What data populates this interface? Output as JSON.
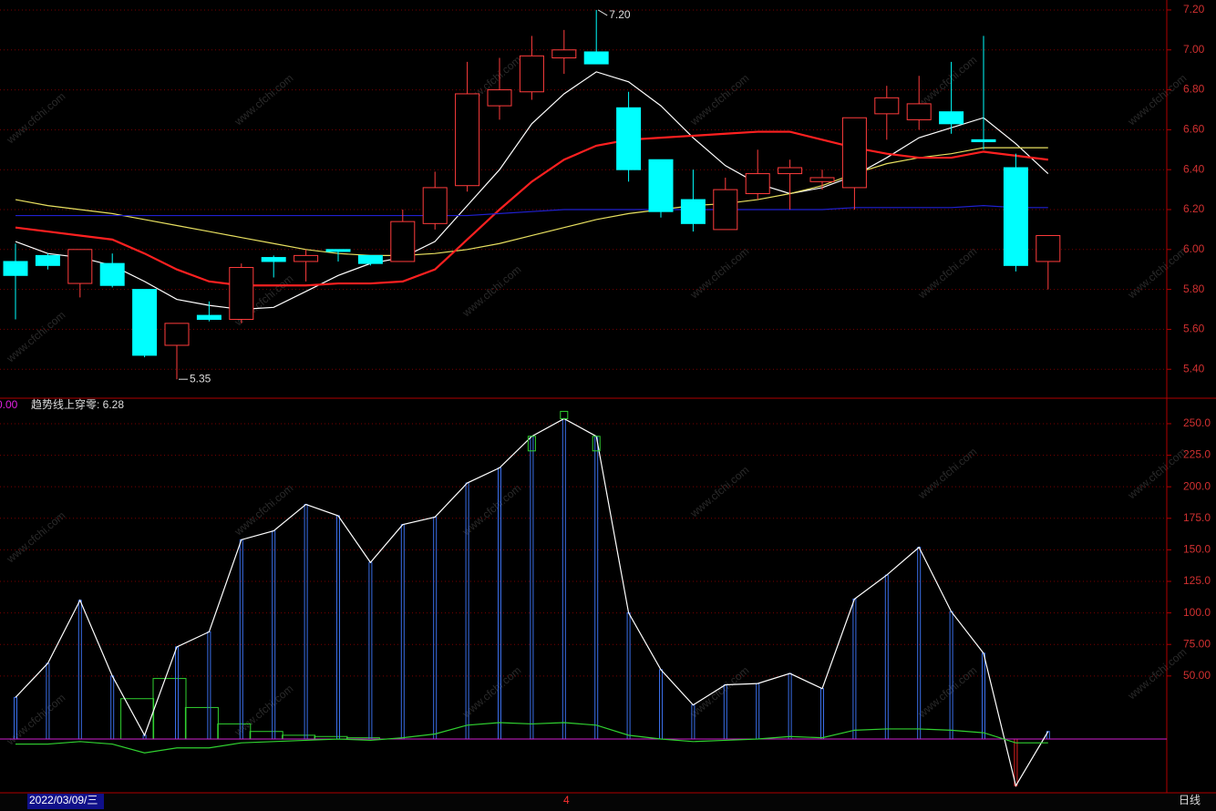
{
  "watermark": "www.cfchi.com",
  "cursor_date": "2022/03/09/三",
  "month_label": "4",
  "period": "日线",
  "chart_data": [
    {
      "type": "candlestick",
      "open": [
        5.94,
        5.97,
        5.83,
        5.93,
        5.8,
        5.52,
        5.67,
        5.65,
        5.96,
        5.94,
        6.0,
        5.97,
        5.94,
        6.13,
        6.32,
        6.72,
        6.79,
        6.96,
        6.99,
        6.71,
        6.45,
        6.25,
        6.1,
        6.28,
        6.38,
        6.34,
        6.31,
        6.68,
        6.65,
        6.69,
        6.55,
        6.41,
        5.94
      ],
      "high": [
        6.03,
        5.98,
        6.0,
        5.98,
        5.8,
        5.63,
        5.74,
        5.93,
        5.97,
        6.0,
        6.0,
        5.97,
        6.2,
        6.39,
        6.94,
        6.96,
        7.07,
        7.1,
        7.2,
        6.79,
        6.45,
        6.4,
        6.36,
        6.5,
        6.45,
        6.4,
        6.66,
        6.82,
        6.87,
        6.94,
        7.07,
        6.48,
        6.07
      ],
      "low": [
        5.65,
        5.9,
        5.76,
        5.81,
        5.46,
        5.35,
        5.64,
        5.63,
        5.86,
        5.84,
        5.94,
        5.92,
        5.94,
        6.1,
        6.29,
        6.65,
        6.75,
        6.88,
        6.93,
        6.34,
        6.16,
        6.09,
        6.1,
        6.25,
        6.2,
        6.3,
        6.2,
        6.55,
        6.6,
        6.58,
        6.5,
        5.89,
        5.8
      ],
      "close": [
        5.87,
        5.92,
        6.0,
        5.82,
        5.47,
        5.63,
        5.65,
        5.91,
        5.94,
        5.97,
        5.99,
        5.93,
        6.14,
        6.31,
        6.78,
        6.8,
        6.97,
        7.0,
        6.93,
        6.4,
        6.19,
        6.13,
        6.3,
        6.38,
        6.41,
        6.36,
        6.66,
        6.76,
        6.73,
        6.63,
        6.54,
        5.92,
        6.07
      ],
      "up_color": "#ff3c3c",
      "down_color": "#00ffff",
      "series": [
        {
          "color": "#ffffff",
          "values": [
            6.04,
            5.98,
            5.96,
            5.92,
            5.84,
            5.75,
            5.72,
            5.7,
            5.71,
            5.79,
            5.87,
            5.93,
            5.96,
            6.04,
            6.22,
            6.4,
            6.63,
            6.78,
            6.89,
            6.84,
            6.72,
            6.56,
            6.42,
            6.33,
            6.28,
            6.31,
            6.37,
            6.46,
            6.56,
            6.61,
            6.66,
            6.53,
            6.38
          ]
        },
        {
          "color": "#e8e060",
          "values": [
            6.25,
            6.22,
            6.2,
            6.18,
            6.15,
            6.12,
            6.09,
            6.06,
            6.03,
            6.0,
            5.98,
            5.97,
            5.97,
            5.98,
            6.0,
            6.03,
            6.07,
            6.11,
            6.15,
            6.18,
            6.2,
            6.22,
            6.23,
            6.25,
            6.28,
            6.32,
            6.38,
            6.43,
            6.46,
            6.48,
            6.51,
            6.51,
            6.51
          ]
        },
        {
          "color": "#ff2020",
          "values": [
            6.11,
            6.09,
            6.07,
            6.05,
            5.98,
            5.9,
            5.84,
            5.82,
            5.82,
            5.82,
            5.83,
            5.83,
            5.84,
            5.9,
            6.05,
            6.2,
            6.34,
            6.45,
            6.52,
            6.55,
            6.56,
            6.57,
            6.58,
            6.59,
            6.59,
            6.55,
            6.51,
            6.48,
            6.46,
            6.46,
            6.49,
            6.47,
            6.45
          ]
        },
        {
          "color": "#2020d0",
          "values": [
            6.17,
            6.17,
            6.17,
            6.17,
            6.17,
            6.17,
            6.17,
            6.17,
            6.17,
            6.17,
            6.17,
            6.17,
            6.17,
            6.17,
            6.17,
            6.18,
            6.19,
            6.2,
            6.2,
            6.2,
            6.2,
            6.2,
            6.2,
            6.2,
            6.2,
            6.2,
            6.21,
            6.21,
            6.21,
            6.21,
            6.22,
            6.21,
            6.21
          ]
        }
      ],
      "high_label": {
        "value": 7.2,
        "label": "7.20"
      },
      "low_label": {
        "value": 5.35,
        "label": "5.35"
      },
      "ylim": [
        5.255,
        7.25
      ],
      "yticks": [
        {
          "value": 5.4,
          "label": "5.40"
        },
        {
          "value": 5.6,
          "label": "5.60"
        },
        {
          "value": 5.8,
          "label": "5.80"
        },
        {
          "value": 6.0,
          "label": "6.00"
        },
        {
          "value": 6.2,
          "label": "6.20"
        },
        {
          "value": 6.4,
          "label": "6.40"
        },
        {
          "value": 6.6,
          "label": "6.60"
        },
        {
          "value": 6.8,
          "label": "6.80"
        },
        {
          "value": 7.0,
          "label": "7.00"
        },
        {
          "value": 7.2,
          "label": "7.20"
        }
      ],
      "grid": true
    },
    {
      "type": "bar",
      "texts": [
        "0.00",
        "趋势线上穿零: 6.28"
      ],
      "values": [
        33,
        60,
        110,
        50,
        3,
        73,
        85,
        158,
        165,
        186,
        177,
        140,
        170,
        176,
        203,
        215,
        240,
        254,
        240,
        100,
        55,
        27,
        43,
        44,
        52,
        40,
        111,
        130,
        152,
        101,
        68,
        -37,
        6
      ],
      "color": "#3a6ee8",
      "negative_color": "#e02020",
      "line_color": "#ffffff",
      "series": [
        {
          "type": "line",
          "color": "#30d030",
          "values": [
            -4,
            -4,
            -2,
            -4,
            -11,
            -7,
            -7,
            -3,
            -2,
            -1,
            0,
            -1,
            1,
            4,
            11,
            13,
            12,
            13,
            11,
            3,
            0,
            -2,
            -1,
            0,
            2,
            1,
            7,
            8,
            8,
            7,
            5,
            -3,
            -3
          ]
        },
        {
          "type": "box",
          "color": "#30d030",
          "values": [
            null,
            null,
            null,
            null,
            32,
            48,
            25,
            12,
            6,
            3,
            2,
            1,
            null,
            null,
            null,
            null,
            null,
            null,
            null,
            null,
            null,
            null,
            null,
            null,
            null,
            null,
            null,
            null,
            null,
            null,
            null,
            null,
            null
          ]
        }
      ],
      "ylim": [
        -42.6,
        270.2
      ],
      "yticks": [
        {
          "value": 50,
          "label": "50.00"
        },
        {
          "value": 75,
          "label": "75.00"
        },
        {
          "value": 100,
          "label": "100.0"
        },
        {
          "value": 125,
          "label": "125.0"
        },
        {
          "value": 150,
          "label": "150.0"
        },
        {
          "value": 175,
          "label": "175.0"
        },
        {
          "value": 200,
          "label": "200.0"
        },
        {
          "value": 225,
          "label": "225.0"
        },
        {
          "value": 250,
          "label": "250.0"
        }
      ],
      "grid": true,
      "baseline_color": "#d020d0"
    }
  ]
}
